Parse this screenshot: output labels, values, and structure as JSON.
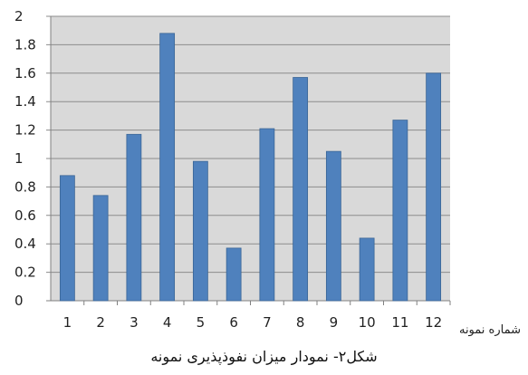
{
  "chart_data": {
    "type": "bar",
    "categories": [
      "1",
      "2",
      "3",
      "4",
      "5",
      "6",
      "7",
      "8",
      "9",
      "10",
      "11",
      "12"
    ],
    "values": [
      0.88,
      0.74,
      1.17,
      1.88,
      0.98,
      0.37,
      1.21,
      1.57,
      1.05,
      0.44,
      1.27,
      1.6
    ],
    "ylim": [
      0,
      2
    ],
    "yticks": [
      "0",
      "0.2",
      "0.4",
      "0.6",
      "0.8",
      "1",
      "1.2",
      "1.4",
      "1.6",
      "1.8",
      "2"
    ],
    "xlabel": "شماره نمونه",
    "caption": "شکل۲- نمودار میزان نفوذپذیری نمونه",
    "grid": true,
    "plot_background": "#d9d9d9",
    "bar_color": "#4f81bd",
    "bar_edge": "#3a6596"
  }
}
